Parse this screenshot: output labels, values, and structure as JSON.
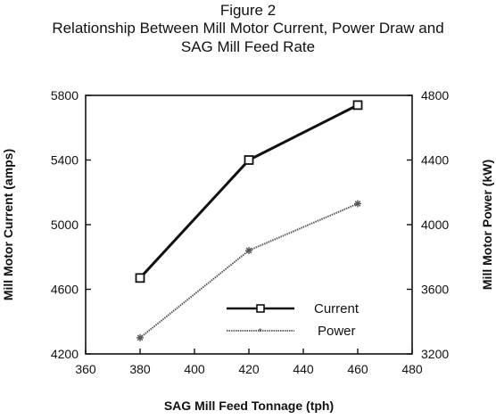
{
  "figure": {
    "label": "Figure 2",
    "title_line1": "Relationship Between Mill Motor Current, Power Draw and",
    "title_line2": "SAG Mill Feed Rate"
  },
  "chart_data": {
    "type": "line",
    "title": "Relationship Between Mill Motor Current, Power Draw and SAG Mill Feed Rate",
    "xlabel": "SAG Mill Feed Tonnage (tph)",
    "ylabel_left": "Mill Motor Current (amps)",
    "ylabel_right": "Mill Motor Power (kW)",
    "xlim": [
      360,
      480
    ],
    "xticks": [
      "360",
      "380",
      "400",
      "420",
      "440",
      "460",
      "480"
    ],
    "ylim_left": [
      4200,
      5800
    ],
    "yticks_left": [
      "4200",
      "4600",
      "5000",
      "5400",
      "5800"
    ],
    "ylim_right": [
      3200,
      4800
    ],
    "yticks_right": [
      "3200",
      "3600",
      "4000",
      "4400",
      "4800"
    ],
    "grid": false,
    "legend_position": "lower-right",
    "series": [
      {
        "name": "Current",
        "axis": "left",
        "color": "#111111",
        "x": [
          380,
          420,
          460
        ],
        "y": [
          4670,
          5400,
          5740
        ]
      },
      {
        "name": "Power",
        "axis": "right",
        "color": "#555555",
        "x": [
          380,
          420,
          460
        ],
        "y": [
          3300,
          3840,
          4130
        ]
      }
    ]
  }
}
